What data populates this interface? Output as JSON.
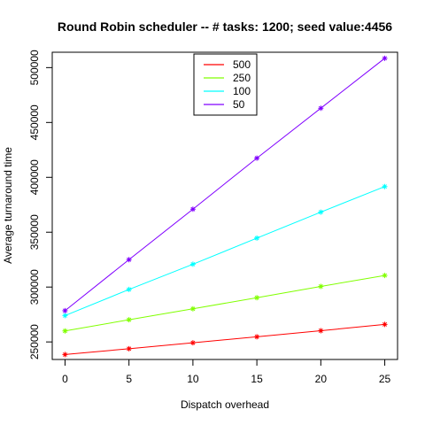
{
  "chart_data": {
    "type": "line",
    "title": "Round Robin scheduler -- # tasks: 1200; seed value:4456",
    "xlabel": "Dispatch overhead",
    "ylabel": "Average turnaround time",
    "x": [
      0,
      5,
      10,
      15,
      20,
      25
    ],
    "xlim": [
      -1,
      26
    ],
    "ylim": [
      234000,
      514000
    ],
    "xticks": [
      0,
      5,
      10,
      15,
      20,
      25
    ],
    "yticks": [
      250000,
      300000,
      350000,
      400000,
      450000,
      500000
    ],
    "xtick_labels": [
      "0",
      "5",
      "10",
      "15",
      "20",
      "25"
    ],
    "ytick_labels": [
      "250000",
      "300000",
      "350000",
      "400000",
      "450000",
      "500000"
    ],
    "marker": "star",
    "grid": false,
    "legend_position": "top-center",
    "series": [
      {
        "name": "500",
        "color": "#ff0000",
        "values": [
          238500,
          243800,
          249200,
          254700,
          260200,
          266000
        ]
      },
      {
        "name": "250",
        "color": "#80ff00",
        "values": [
          260000,
          270200,
          280200,
          290300,
          300600,
          310600
        ]
      },
      {
        "name": "100",
        "color": "#00ffff",
        "values": [
          274000,
          297800,
          320800,
          344600,
          368300,
          391600
        ]
      },
      {
        "name": "50",
        "color": "#8000ff",
        "values": [
          278500,
          325000,
          371000,
          417500,
          463000,
          508500
        ]
      }
    ]
  }
}
